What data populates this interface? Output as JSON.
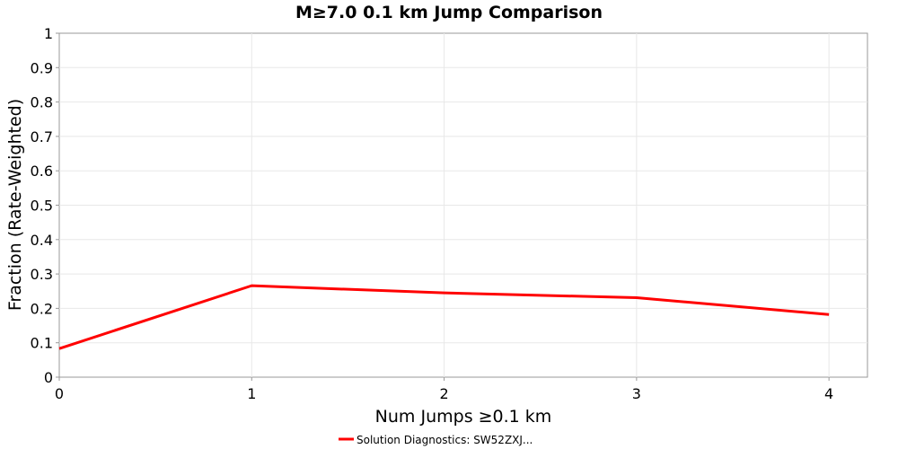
{
  "chart_data": {
    "type": "line",
    "title": "M≥7.0 0.1 km Jump Comparison",
    "xlabel": "Num Jumps ≥0.1 km",
    "ylabel": "Fraction (Rate-Weighted)",
    "xlim": [
      0,
      4.2
    ],
    "ylim": [
      0,
      1
    ],
    "x_ticks": [
      "0",
      "1",
      "2",
      "3",
      "4"
    ],
    "y_ticks": [
      "0",
      "0.1",
      "0.2",
      "0.3",
      "0.4",
      "0.5",
      "0.6",
      "0.7",
      "0.8",
      "0.9",
      "1"
    ],
    "grid": true,
    "legend_position": "bottom-center",
    "series": [
      {
        "name": "Solution Diagnostics: SW52ZXJ...",
        "color": "#ff0000",
        "x": [
          0,
          1,
          2,
          3,
          4
        ],
        "y": [
          0.083,
          0.266,
          0.245,
          0.231,
          0.182
        ]
      }
    ]
  }
}
